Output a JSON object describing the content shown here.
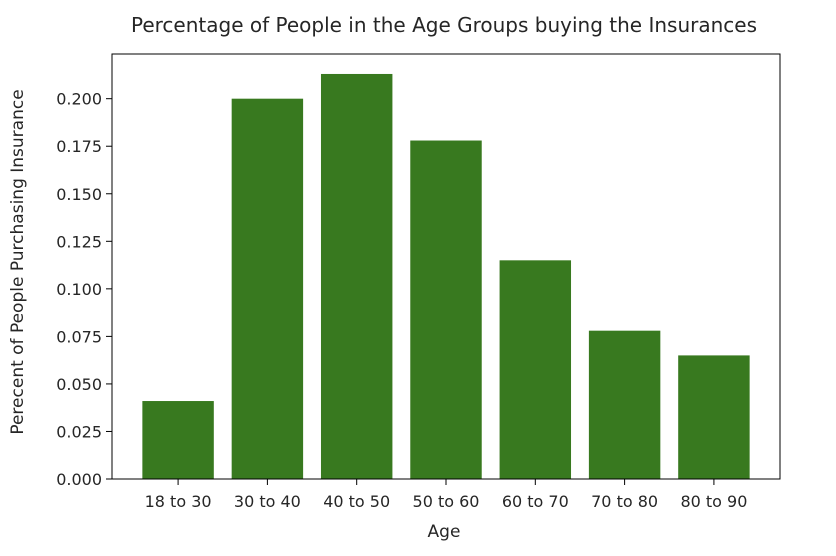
{
  "chart_data": {
    "type": "bar",
    "title": "Percentage of People in the Age Groups buying the Insurances",
    "xlabel": "Age",
    "ylabel": "Perecent of People Purchasing Insurance",
    "categories": [
      "18 to 30",
      "30 to 40",
      "40 to 50",
      "50 to 60",
      "60 to 70",
      "70 to 80",
      "80 to 90"
    ],
    "values": [
      0.041,
      0.2,
      0.213,
      0.178,
      0.115,
      0.078,
      0.065
    ],
    "ylim": [
      0,
      0.2235
    ],
    "yticks": [
      "0.000",
      "0.025",
      "0.050",
      "0.075",
      "0.100",
      "0.125",
      "0.150",
      "0.175",
      "0.200"
    ],
    "bar_color": "#38791f",
    "grid": false,
    "legend": "none"
  }
}
